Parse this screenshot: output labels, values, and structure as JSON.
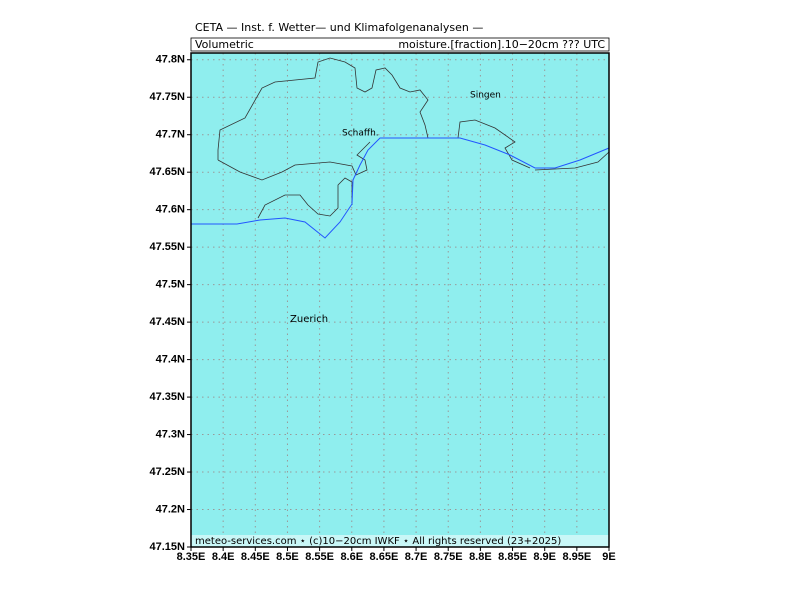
{
  "map": {
    "title": "CETA — Inst. f. Wetter— und Klimafolgenanalysen —",
    "left_label": "Volumetric",
    "right_label": "moisture.[fraction].10−20cm ??? UTC",
    "footer": "meteo-services.com ⋆ (c)10−20cm IWKF ⋆ All rights reserved (23+2025)",
    "places": [
      "Singen",
      "Schaffh.",
      "Zuerich"
    ],
    "xlim": [
      8.35,
      9
    ],
    "ylim": [
      47.15,
      47.809
    ],
    "xticks": [
      {
        "value": 8.35,
        "label": "8.35E"
      },
      {
        "value": 8.4,
        "label": "8.4E"
      },
      {
        "value": 8.45,
        "label": "8.45E"
      },
      {
        "value": 8.5,
        "label": "8.5E"
      },
      {
        "value": 8.55,
        "label": "8.55E"
      },
      {
        "value": 8.6,
        "label": "8.6E"
      },
      {
        "value": 8.65,
        "label": "8.65E"
      },
      {
        "value": 8.7,
        "label": "8.7E"
      },
      {
        "value": 8.75,
        "label": "8.75E"
      },
      {
        "value": 8.8,
        "label": "8.8E"
      },
      {
        "value": 8.85,
        "label": "8.85E"
      },
      {
        "value": 8.9,
        "label": "8.9E"
      },
      {
        "value": 8.95,
        "label": "8.95E"
      },
      {
        "value": 9,
        "label": "9E"
      }
    ],
    "yticks": [
      {
        "value": 47.15,
        "label": "47.15N"
      },
      {
        "value": 47.2,
        "label": "47.2N"
      },
      {
        "value": 47.25,
        "label": "47.25N"
      },
      {
        "value": 47.3,
        "label": "47.3N"
      },
      {
        "value": 47.35,
        "label": "47.35N"
      },
      {
        "value": 47.4,
        "label": "47.4N"
      },
      {
        "value": 47.45,
        "label": "47.45N"
      },
      {
        "value": 47.5,
        "label": "47.5N"
      },
      {
        "value": 47.55,
        "label": "47.55N"
      },
      {
        "value": 47.6,
        "label": "47.6N"
      },
      {
        "value": 47.65,
        "label": "47.65N"
      },
      {
        "value": 47.7,
        "label": "47.7N"
      },
      {
        "value": 47.75,
        "label": "47.75N"
      },
      {
        "value": 47.8,
        "label": "47.8N"
      }
    ],
    "grid": true
  }
}
